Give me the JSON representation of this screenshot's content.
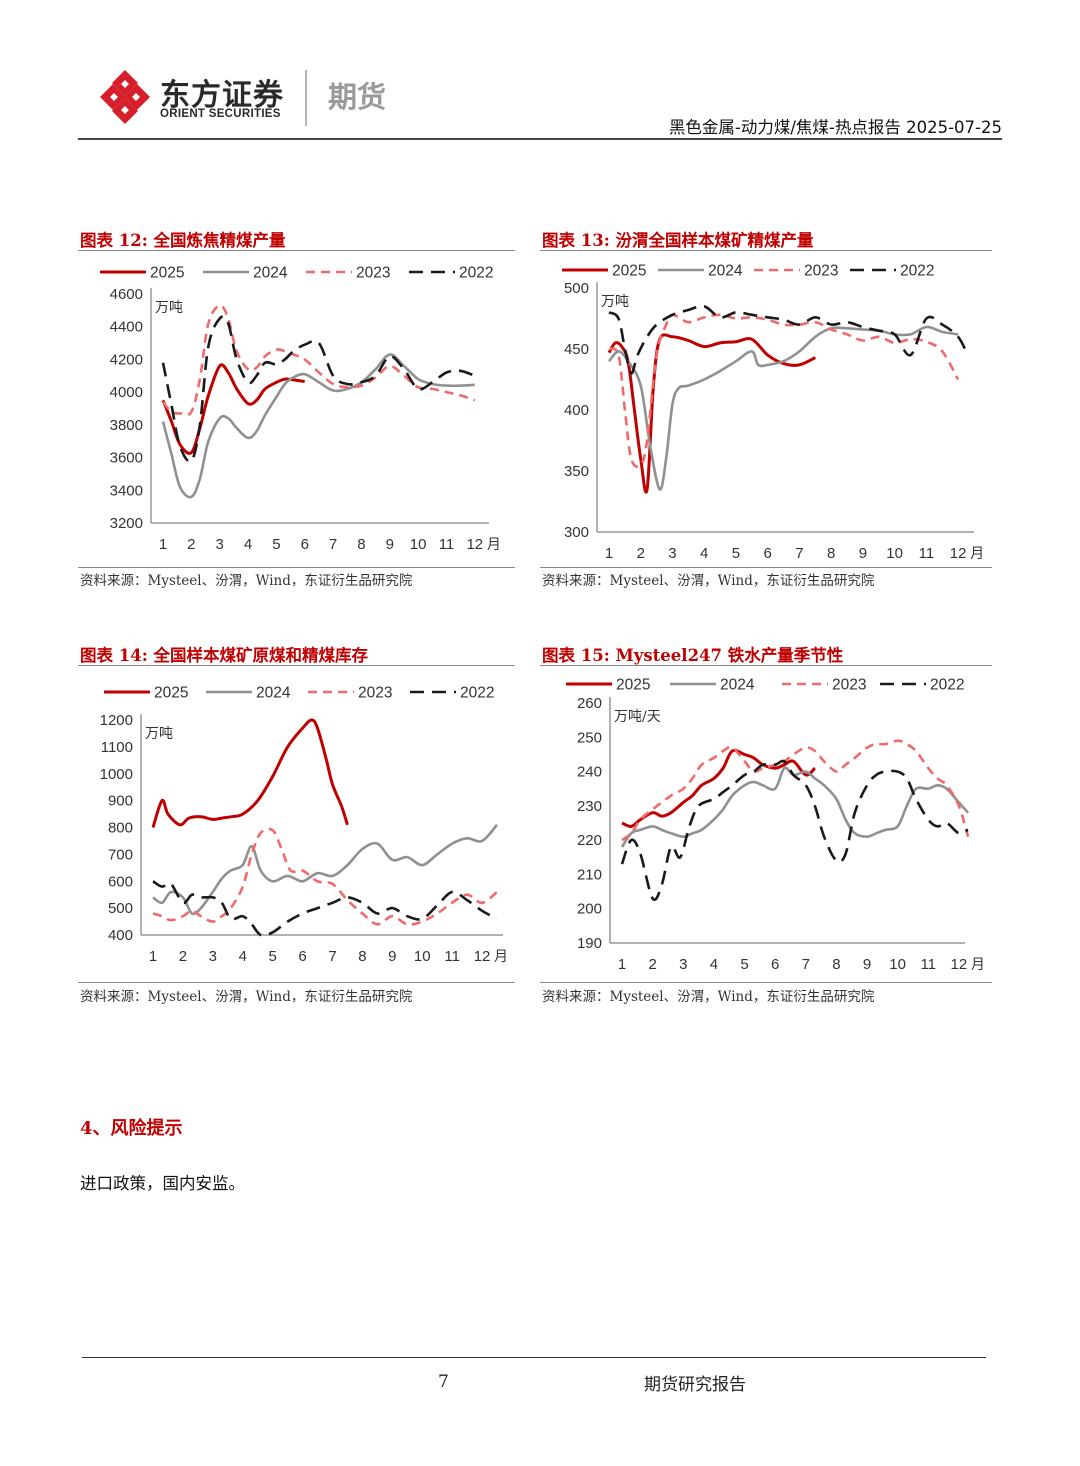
{
  "header": {
    "logo_cn": "东方证券",
    "logo_en": "ORIENT SECURITIES",
    "logo_sub": "期货",
    "doc_title": "黑色金属-动力煤/焦煤-热点报告 2025-07-25",
    "brand_color": "#d71e2b"
  },
  "series_styles": [
    {
      "name": "2025",
      "color": "#c00000",
      "dash": "solid"
    },
    {
      "name": "2024",
      "color": "#909090",
      "dash": "solid"
    },
    {
      "name": "2023",
      "color": "#ef6b6b",
      "dash": "dashed"
    },
    {
      "name": "2022",
      "color": "#1a1a1a",
      "dash": "dashed"
    }
  ],
  "charts": [
    {
      "title": "图表 12:  全国炼焦精煤产量",
      "source": "资料来源：Mysteel、汾渭，Wind，东证衍生品研究院"
    },
    {
      "title": "图表 13:  汾渭全国样本煤矿精煤产量",
      "source": "资料来源：Mysteel、汾渭，Wind，东证衍生品研究院"
    },
    {
      "title": "图表 14:   全国样本煤矿原煤和精煤库存",
      "source": "资料来源：Mysteel、汾渭，Wind，东证衍生品研究院"
    },
    {
      "title": "图表 15:  Mysteel247 铁水产量季节性",
      "source": "资料来源：Mysteel、汾渭，Wind，东证衍生品研究院"
    }
  ],
  "chart_data": [
    {
      "type": "line",
      "unit": "万吨",
      "x_label_suffix": "月",
      "x_ticks": [
        "1",
        "2",
        "3",
        "4",
        "5",
        "6",
        "7",
        "8",
        "9",
        "10",
        "11",
        "12"
      ],
      "ylim": [
        3200,
        4600
      ],
      "y_ticks": [
        3200,
        3400,
        3600,
        3800,
        4000,
        4200,
        4400,
        4600
      ],
      "legend": "top",
      "series": [
        {
          "name": "2025",
          "x": [
            1,
            1.3,
            1.6,
            2,
            2.3,
            2.6,
            3,
            3.3,
            3.6,
            4,
            4.3,
            4.6,
            5,
            5.3,
            5.6,
            6
          ],
          "y": [
            3950,
            3820,
            3680,
            3630,
            3780,
            3980,
            4160,
            4120,
            4020,
            3930,
            3950,
            4020,
            4060,
            4080,
            4075,
            4065
          ]
        },
        {
          "name": "2024",
          "x": [
            1,
            1.3,
            1.6,
            2,
            2.3,
            2.6,
            3,
            3.3,
            3.6,
            4,
            4.3,
            4.6,
            5,
            5.3,
            5.6,
            6,
            6.5,
            7,
            7.5,
            8,
            8.5,
            9,
            9.5,
            10,
            10.5,
            11,
            11.5,
            12
          ],
          "y": [
            3820,
            3620,
            3420,
            3360,
            3470,
            3700,
            3840,
            3840,
            3780,
            3720,
            3760,
            3860,
            3970,
            4050,
            4090,
            4110,
            4060,
            4010,
            4020,
            4060,
            4140,
            4230,
            4160,
            4080,
            4050,
            4040,
            4040,
            4045
          ]
        },
        {
          "name": "2023",
          "x": [
            1,
            1.3,
            1.6,
            2,
            2.3,
            2.6,
            3,
            3.3,
            3.6,
            4,
            4.3,
            4.6,
            5,
            5.3,
            5.6,
            6,
            6.5,
            7,
            7.5,
            8,
            8.5,
            9,
            9.5,
            10,
            10.5,
            11,
            11.5,
            12
          ],
          "y": [
            3940,
            3880,
            3870,
            3880,
            4080,
            4420,
            4530,
            4450,
            4250,
            4140,
            4150,
            4220,
            4260,
            4250,
            4230,
            4200,
            4120,
            4050,
            4030,
            4040,
            4090,
            4160,
            4100,
            4030,
            4020,
            4000,
            3980,
            3950
          ]
        },
        {
          "name": "2022",
          "x": [
            1,
            1.3,
            1.6,
            2,
            2.3,
            2.6,
            3,
            3.3,
            3.6,
            4,
            4.3,
            4.6,
            5,
            5.3,
            5.6,
            6,
            6.5,
            7,
            7.5,
            8,
            8.5,
            9,
            9.5,
            10,
            10.5,
            11,
            11.5,
            12
          ],
          "y": [
            4180,
            3920,
            3670,
            3580,
            3800,
            4280,
            4450,
            4420,
            4200,
            4060,
            4100,
            4180,
            4170,
            4200,
            4250,
            4290,
            4300,
            4100,
            4050,
            4060,
            4100,
            4220,
            4140,
            4020,
            4060,
            4120,
            4130,
            4100
          ]
        }
      ]
    },
    {
      "type": "line",
      "unit": "万吨",
      "x_label_suffix": "月",
      "x_ticks": [
        "1",
        "2",
        "3",
        "4",
        "5",
        "6",
        "7",
        "8",
        "9",
        "10",
        "11",
        "12"
      ],
      "ylim": [
        300,
        500
      ],
      "y_ticks": [
        300,
        350,
        400,
        450,
        500
      ],
      "legend": "top",
      "series": [
        {
          "name": "2025",
          "x": [
            1,
            1.2,
            1.4,
            1.6,
            1.8,
            2,
            2.2,
            2.4,
            2.6,
            3,
            3.5,
            4,
            4.5,
            5,
            5.5,
            6,
            6.5,
            7,
            7.5
          ],
          "y": [
            447,
            455,
            452,
            440,
            400,
            360,
            335,
            420,
            458,
            460,
            457,
            452,
            455,
            456,
            458,
            445,
            438,
            437,
            443
          ]
        },
        {
          "name": "2024",
          "x": [
            1,
            1.3,
            1.6,
            2,
            2.3,
            2.6,
            2.8,
            3,
            3.2,
            3.5,
            4,
            4.5,
            5,
            5.5,
            5.7,
            6,
            6.5,
            7,
            7.5,
            8,
            8.5,
            9,
            9.5,
            10,
            10.5,
            11,
            11.5,
            12
          ],
          "y": [
            440,
            448,
            440,
            420,
            370,
            335,
            360,
            405,
            418,
            420,
            425,
            432,
            440,
            448,
            437,
            437,
            440,
            448,
            460,
            467,
            467,
            466,
            465,
            462,
            462,
            468,
            464,
            462
          ]
        },
        {
          "name": "2023",
          "x": [
            1,
            1.3,
            1.5,
            1.7,
            2,
            2.2,
            2.5,
            2.8,
            3,
            3.5,
            4,
            4.5,
            5,
            5.5,
            6,
            6.5,
            7,
            7.5,
            8,
            8.5,
            9,
            9.5,
            10,
            10.5,
            11,
            11.5,
            12
          ],
          "y": [
            450,
            445,
            400,
            360,
            355,
            375,
            445,
            470,
            478,
            472,
            476,
            478,
            475,
            476,
            474,
            470,
            470,
            472,
            466,
            462,
            457,
            460,
            455,
            458,
            456,
            448,
            425
          ]
        },
        {
          "name": "2022",
          "x": [
            1,
            1.3,
            1.5,
            1.7,
            1.9,
            2.2,
            2.5,
            3,
            3.5,
            4,
            4.5,
            5,
            5.5,
            6,
            6.5,
            7,
            7.5,
            8,
            8.5,
            9,
            9.5,
            10,
            10.5,
            11,
            11.5,
            12,
            12.3
          ],
          "y": [
            480,
            475,
            450,
            430,
            445,
            460,
            470,
            478,
            482,
            485,
            476,
            480,
            478,
            476,
            474,
            470,
            476,
            470,
            472,
            468,
            465,
            462,
            445,
            475,
            470,
            460,
            445
          ]
        }
      ]
    },
    {
      "type": "line",
      "unit": "万吨",
      "x_label_suffix": "月",
      "x_ticks": [
        "1",
        "2",
        "3",
        "4",
        "5",
        "6",
        "7",
        "8",
        "9",
        "10",
        "11",
        "12"
      ],
      "ylim": [
        400,
        1200
      ],
      "y_ticks": [
        400,
        500,
        600,
        700,
        800,
        900,
        1000,
        1100,
        1200
      ],
      "legend": "top",
      "series": [
        {
          "name": "2025",
          "x": [
            1,
            1.3,
            1.5,
            1.9,
            2.2,
            2.6,
            3,
            3.3,
            3.6,
            4,
            4.5,
            5,
            5.5,
            6,
            6.3,
            6.5,
            6.8,
            7,
            7.3,
            7.5
          ],
          "y": [
            800,
            900,
            850,
            810,
            835,
            840,
            830,
            835,
            840,
            850,
            900,
            990,
            1100,
            1170,
            1200,
            1170,
            1050,
            960,
            880,
            810
          ]
        },
        {
          "name": "2024",
          "x": [
            1,
            1.3,
            1.6,
            2,
            2.3,
            2.6,
            3,
            3.3,
            3.6,
            4,
            4.3,
            4.6,
            5,
            5.5,
            6,
            6.5,
            7,
            7.5,
            8,
            8.5,
            9,
            9.5,
            10,
            10.5,
            11,
            11.5,
            12,
            12.5
          ],
          "y": [
            540,
            520,
            560,
            540,
            480,
            500,
            560,
            610,
            640,
            660,
            730,
            640,
            600,
            620,
            600,
            630,
            620,
            660,
            720,
            740,
            680,
            690,
            660,
            700,
            740,
            760,
            750,
            810
          ]
        },
        {
          "name": "2023",
          "x": [
            1,
            1.3,
            1.6,
            2,
            2.3,
            2.6,
            3,
            3.3,
            3.6,
            4,
            4.3,
            4.6,
            5,
            5.3,
            5.6,
            6,
            6.5,
            7,
            7.5,
            8,
            8.5,
            9,
            9.5,
            10,
            10.5,
            11,
            11.5,
            12,
            12.5
          ],
          "y": [
            480,
            470,
            455,
            470,
            490,
            470,
            450,
            470,
            500,
            580,
            700,
            780,
            790,
            720,
            640,
            640,
            600,
            590,
            530,
            480,
            440,
            470,
            440,
            450,
            480,
            520,
            550,
            520,
            560
          ]
        },
        {
          "name": "2022",
          "x": [
            1,
            1.3,
            1.6,
            2,
            2.3,
            2.6,
            3,
            3.3,
            3.6,
            4,
            4.3,
            4.6,
            5,
            5.5,
            6,
            6.5,
            7,
            7.5,
            8,
            8.5,
            9,
            9.5,
            10,
            10.5,
            11,
            11.5,
            12,
            12.5
          ],
          "y": [
            600,
            580,
            590,
            520,
            550,
            540,
            540,
            520,
            460,
            470,
            440,
            400,
            410,
            450,
            480,
            500,
            520,
            540,
            520,
            480,
            500,
            470,
            460,
            510,
            560,
            530,
            490,
            460
          ]
        }
      ]
    },
    {
      "type": "line",
      "unit": "万吨/天",
      "x_label_suffix": "月",
      "x_ticks": [
        "1",
        "2",
        "3",
        "4",
        "5",
        "6",
        "7",
        "8",
        "9",
        "10",
        "11",
        "12"
      ],
      "ylim": [
        190,
        260
      ],
      "y_ticks": [
        190,
        200,
        210,
        220,
        230,
        240,
        250,
        260
      ],
      "legend": "top",
      "series": [
        {
          "name": "2025",
          "x": [
            1,
            1.3,
            1.6,
            2,
            2.3,
            2.6,
            3,
            3.3,
            3.6,
            4,
            4.3,
            4.6,
            5,
            5.3,
            5.6,
            6,
            6.3,
            6.6,
            7,
            7.3
          ],
          "y": [
            225,
            224,
            226,
            228,
            227,
            228,
            231,
            233,
            236,
            238,
            241,
            246,
            245,
            244,
            242,
            241,
            242,
            243,
            239,
            241
          ]
        },
        {
          "name": "2024",
          "x": [
            1,
            1.3,
            1.6,
            2,
            2.3,
            2.6,
            3,
            3.3,
            3.6,
            4,
            4.3,
            4.6,
            5,
            5.3,
            5.6,
            6,
            6.3,
            6.6,
            7,
            7.3,
            7.6,
            8,
            8.3,
            8.6,
            9,
            9.3,
            9.6,
            10,
            10.3,
            10.6,
            11,
            11.3,
            11.6,
            12,
            12.3
          ],
          "y": [
            218,
            222,
            223,
            224,
            223,
            222,
            221,
            222,
            223,
            226,
            229,
            233,
            236,
            237,
            236,
            235,
            241,
            239,
            240,
            238,
            236,
            232,
            226,
            222,
            221,
            222,
            223,
            224,
            230,
            235,
            235,
            236,
            235,
            231,
            228
          ]
        },
        {
          "name": "2023",
          "x": [
            1,
            1.3,
            1.6,
            2,
            2.3,
            2.6,
            3,
            3.3,
            3.6,
            4,
            4.3,
            4.6,
            5,
            5.3,
            5.6,
            6,
            6.3,
            6.6,
            7,
            7.3,
            7.6,
            8,
            8.3,
            8.6,
            9,
            9.3,
            9.6,
            10,
            10.3,
            10.6,
            11,
            11.3,
            11.6,
            12,
            12.3
          ],
          "y": [
            220,
            222,
            226,
            229,
            231,
            233,
            235,
            238,
            242,
            244,
            246,
            247,
            243,
            240,
            241,
            242,
            243,
            245,
            247,
            246,
            243,
            240,
            242,
            244,
            247,
            248,
            248,
            249,
            248,
            246,
            241,
            238,
            236,
            230,
            221
          ]
        },
        {
          "name": "2022",
          "x": [
            1,
            1.3,
            1.6,
            2,
            2.3,
            2.6,
            2.9,
            3.2,
            3.5,
            4,
            4.3,
            4.6,
            5,
            5.3,
            5.6,
            6,
            6.3,
            6.6,
            7,
            7.3,
            7.6,
            8,
            8.3,
            8.6,
            9,
            9.3,
            9.6,
            10,
            10.3,
            10.6,
            11,
            11.3,
            11.6,
            12,
            12.3
          ],
          "y": [
            213,
            220,
            216,
            203,
            207,
            218,
            215,
            224,
            230,
            232,
            234,
            236,
            239,
            240,
            242,
            242,
            243,
            239,
            236,
            230,
            221,
            214,
            216,
            228,
            236,
            239,
            240,
            240,
            238,
            232,
            226,
            224,
            225,
            222,
            223
          ]
        }
      ]
    }
  ],
  "section": {
    "title": "4、风险提示",
    "body": "进口政策，国内安监。"
  },
  "footer": {
    "page": "7",
    "label": "期货研究报告"
  }
}
